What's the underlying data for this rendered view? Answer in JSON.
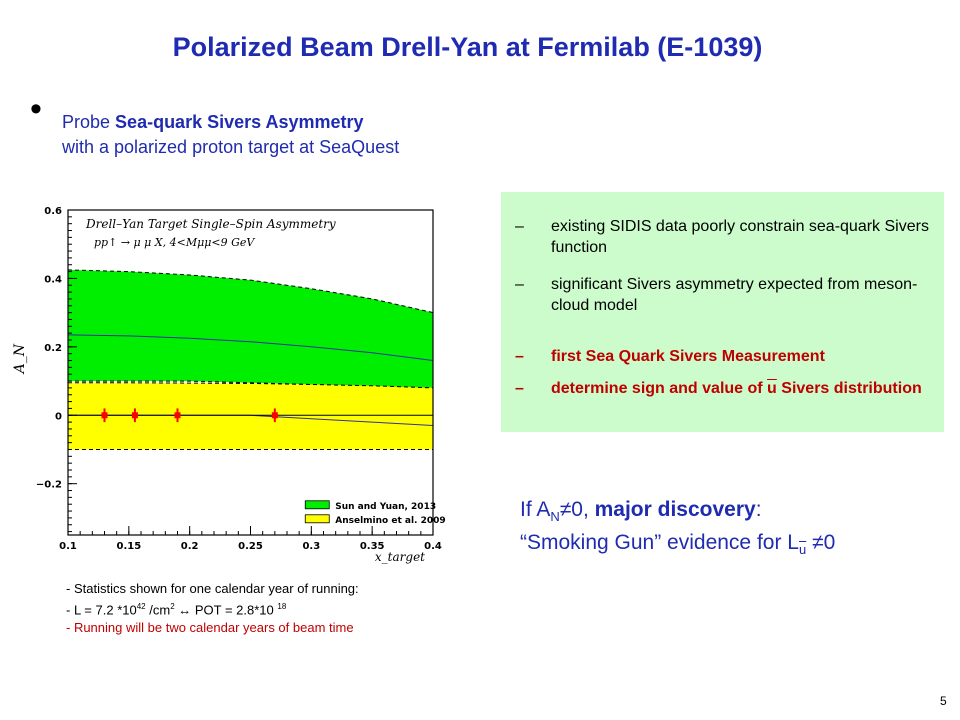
{
  "title": "Polarized Beam Drell-Yan at Fermilab (E-1039)",
  "bullet": {
    "icon": "bullet-dot",
    "prefix": "Probe ",
    "bold": "Sea-quark Sivers Asymmetry",
    "line2": "with a polarized proton target at SeaQuest"
  },
  "box": {
    "background": "#ccfccc",
    "dash": "–",
    "items": [
      {
        "text": "existing SIDIS data poorly constrain sea-quark Sivers function"
      },
      {
        "text": "significant Sivers asymmetry expected from meson-cloud model"
      },
      {
        "text": "first Sea Quark Sivers Measurement"
      },
      {
        "pre": "determine sign and value of ",
        "ubar": "u",
        "post": " Sivers distribution"
      }
    ]
  },
  "discovery": {
    "line1_pre": "If A",
    "line1_sub": "N",
    "line1_mid": "≠0, ",
    "line1_bold": "major discovery",
    "line1_post": ":",
    "line2_pre": "“Smoking Gun” evidence for L",
    "line2_sub": "u",
    "line2_post": " ≠0"
  },
  "stats": {
    "line1": "- Statistics shown for one calendar year of running:",
    "line2_a": "- L = 7.2 *10",
    "line2_sup1": "42",
    "line2_b": " /cm",
    "line2_sup2": "2",
    "line2_c": " ↔ POT = 2.8*10 ",
    "line2_sup3": "18",
    "line3": "- Running will be two calendar years of beam time"
  },
  "page_number": "5",
  "colors": {
    "title": "#1f2bb0",
    "red": "#c00000",
    "green_band": "#00ee00",
    "yellow_band": "#ffff00",
    "points": "#ff0000"
  },
  "chart_data": {
    "type": "area",
    "title": "Drell–Yan Target Single–Spin Asymmetry",
    "subtitle": "pp↑ → μ μ X, 4<Mμμ<9 GeV",
    "xlabel": "x_target",
    "ylabel": "A_N",
    "xlim": [
      0.1,
      0.4
    ],
    "ylim": [
      -0.35,
      0.6
    ],
    "xticks": [
      "0.1",
      "0.15",
      "0.2",
      "0.25",
      "0.3",
      "0.35",
      "0.4"
    ],
    "yticks": [
      "−0.2",
      "0",
      "0.2",
      "0.4",
      "0.6"
    ],
    "ytick_values": [
      -0.2,
      0,
      0.2,
      0.4,
      0.6
    ],
    "legend_position": "bottom-right",
    "series": [
      {
        "name": "Sun and Yuan, 2013",
        "x": [
          0.1,
          0.15,
          0.2,
          0.25,
          0.3,
          0.35,
          0.4
        ],
        "upper": [
          0.425,
          0.42,
          0.41,
          0.395,
          0.37,
          0.34,
          0.3
        ],
        "lower": [
          0.1,
          0.1,
          0.1,
          0.095,
          0.09,
          0.085,
          0.08
        ],
        "central": [
          0.235,
          0.232,
          0.225,
          0.215,
          0.2,
          0.183,
          0.16
        ]
      },
      {
        "name": "Anselmino et al. 2009",
        "x": [
          0.1,
          0.15,
          0.2,
          0.25,
          0.3,
          0.35,
          0.4
        ],
        "upper": [
          0.095,
          0.095,
          0.094,
          0.093,
          0.09,
          0.086,
          0.08
        ],
        "lower": [
          -0.1,
          -0.1,
          -0.1,
          -0.1,
          -0.1,
          -0.1,
          -0.1
        ],
        "central": [
          0.0,
          0.0,
          0.0,
          0.0,
          -0.01,
          -0.02,
          -0.03
        ]
      }
    ],
    "points": {
      "x": [
        0.13,
        0.155,
        0.19,
        0.27
      ],
      "y": [
        0.0,
        0.0,
        0.0,
        0.0
      ],
      "err": [
        0.02,
        0.02,
        0.02,
        0.02
      ]
    }
  }
}
